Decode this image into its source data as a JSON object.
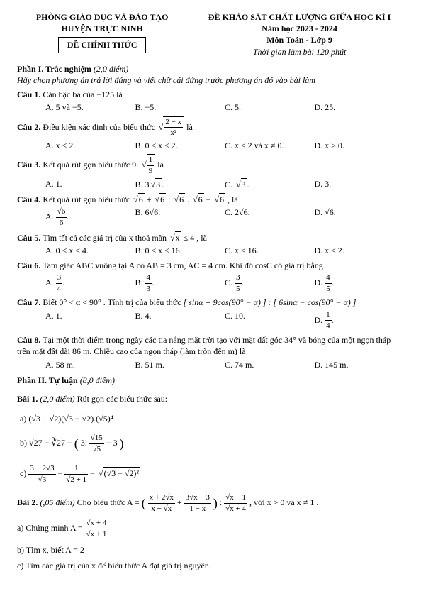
{
  "header": {
    "left1": "PHÒNG GIÁO DỤC VÀ ĐÀO TẠO",
    "left2": "HUYỆN TRỰC NINH",
    "de": "ĐỀ CHÍNH THỨC",
    "right1": "ĐỀ KHẢO SÁT CHẤT LƯỢNG GIỮA HỌC KÌ I",
    "right2": "Năm học 2023 - 2024",
    "right3": "Môn Toán - Lớp 9",
    "right4": "Thời gian làm bài 120 phút"
  },
  "phan1": {
    "title": "Phần I. Trắc nghiệm",
    "points": "(2,0 điểm)",
    "instr": "Hãy chọn phương án trả lời đúng và viết chữ cái đứng trước phương án đó vào bài làm"
  },
  "c1": {
    "label": "Câu 1.",
    "text": "Căn bậc ba của −125 là",
    "a": "A.  5 và −5.",
    "b": "B.  −5.",
    "c": "C.  5.",
    "d": "D.  25."
  },
  "c2": {
    "label": "Câu 2.",
    "text": "Điều kiện xác định của biểu thức ",
    "sq_num": "2 − x",
    "sq_den": "x²",
    "tail": " là",
    "a": "A.  x ≤ 2.",
    "b": "B.  0 ≤ x ≤ 2.",
    "c": "C.  x ≤ 2  và  x ≠ 0.",
    "d": "D.  x > 0."
  },
  "c3": {
    "label": "Câu 3.",
    "text": "Kết quả rút gọn biểu thức 9.",
    "sq_num": "1",
    "sq_den": "9",
    "tail": "  là",
    "a": "A. 1.",
    "b_pre": "B. 3",
    "b_rad": "3",
    "c_pre": "C.   ",
    "c_rad": "3",
    "d": "D.  3."
  },
  "c4": {
    "label": "Câu 4.",
    "text": "Kết quả rút gọn biểu thức ",
    "expr_a": "6",
    "expr_plus": " + ",
    "expr_b": "6",
    "expr_div": " : ",
    "expr_c": "6",
    "expr_dot": ". ",
    "expr_d": "6",
    "expr_minus": " − ",
    "expr_e": "6",
    "tail": " , là",
    "a_num": "√6",
    "a_den": "6",
    "b": "B.  6√6.",
    "c": "C.  2√6.",
    "d": "D.  √6."
  },
  "c5": {
    "label": "Câu 5.",
    "text": "Tìm tất cả các giá trị của x thoả mãn ",
    "rad": "x",
    "tail": " ≤ 4 , là",
    "a": "A.  0 ≤ x ≤ 4.",
    "b": "B.  0 ≤ x ≤ 16.",
    "c": "C.  x ≤ 16.",
    "d": "D.  x ≤ 2."
  },
  "c6": {
    "label": "Câu 6.",
    "text": "Tam giác ABC vuông tại A có AB = 3 cm, AC = 4 cm. Khi đó cosC có giá trị bằng",
    "a_num": "3",
    "a_den": "4",
    "b_num": "4",
    "b_den": "3",
    "c_num": "3",
    "c_den": "5",
    "d_num": "4",
    "d_den": "5"
  },
  "c7": {
    "label": "Câu 7.",
    "text1": "Biết 0° < α < 90° . Tính trị của biểu thức ",
    "br1": "[ sinα + 9cos(90° − α) ] : [ 6sinα − cos(90° − α) ]",
    "a": "A. 1.",
    "b": "B. 4.",
    "c": "C. 10.",
    "d_num": "1",
    "d_den": "4"
  },
  "c8": {
    "label": "Câu 8.",
    "text": "Tại một thời điểm trong ngày các tia nắng mặt trời tạo với mặt đất góc 34° và bóng của một ngọn tháp trên mặt đất dài 86 m. Chiều cao của ngọn tháp (làm tròn đến m) là",
    "a": "A. 58 m.",
    "b": "B. 51 m.",
    "c": "C. 74 m.",
    "d": "D. 145 m."
  },
  "phan2": {
    "title": "Phần II. Tự luận",
    "points": "(8,0 điểm)"
  },
  "bai1": {
    "label": "Bài 1.",
    "points": "(2,0 điểm)",
    "text": "Rút gọn các biểu thức sau:",
    "a": "a) (√3 + √2)(√3 − √2).(√5)⁴",
    "b_pre": "b) √27 − ∛27 − ",
    "b_in1": "3.",
    "b_num": "√15",
    "b_den": "√5",
    "b_in2": " − 3",
    "c_n1": "3 + 2√3",
    "c_d1": "√3",
    "c_n2": "1",
    "c_d2": "√2 + 1",
    "c_rad": "(√3 − √2)²"
  },
  "bai2": {
    "label": "Bài 2.",
    "points": "(,05 điểm)",
    "text": "Cho biểu thức  A = ",
    "p1_num": "x + 2√x",
    "p1_den": "x + √x",
    "p2_num": "3√x − 3",
    "p2_den": "1 − x",
    "p3_num": "√x − 1",
    "p3_den": "√x + 4",
    "tail": ", với  x > 0 và  x ≠ 1 .",
    "a_pre": "a) Chứng minh  A = ",
    "a_num": "√x + 4",
    "a_den": "√x + 1",
    "b": "b) Tìm x, biết  A = 2",
    "c": "c) Tìm các giá trị của x để biểu thức A đạt giá trị nguyên."
  }
}
